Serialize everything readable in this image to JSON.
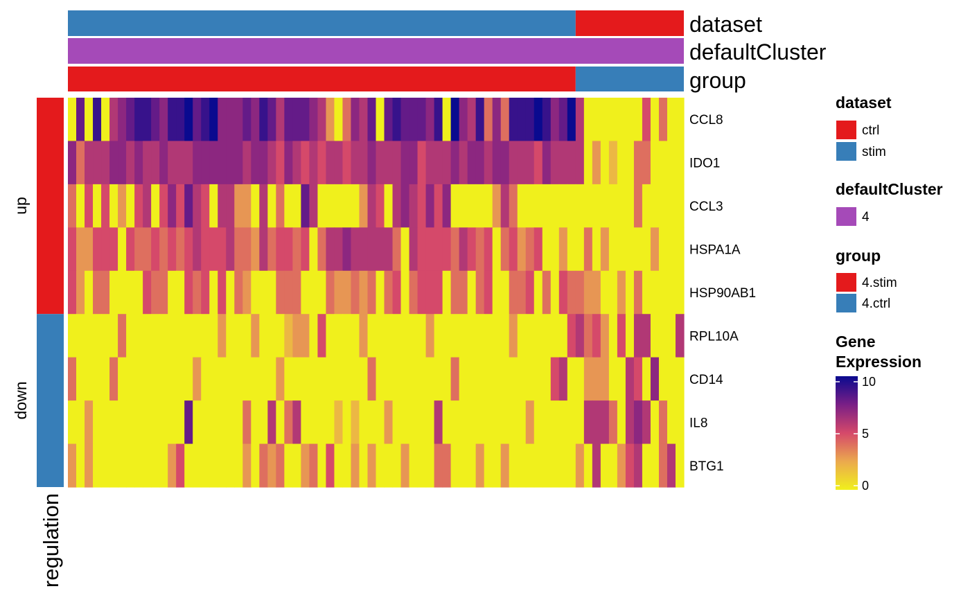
{
  "chart_data": {
    "type": "heatmap",
    "genes": [
      "CCL8",
      "IDO1",
      "CCL3",
      "HSPA1A",
      "HSP90AB1",
      "RPL10A",
      "CD14",
      "IL8",
      "BTG1"
    ],
    "regulation_groups": [
      {
        "label": "up",
        "genes": 5,
        "color": "#E41A1C"
      },
      {
        "label": "down",
        "genes": 4,
        "color": "#377EB8"
      }
    ],
    "regulation_title": "regulation",
    "annotations": [
      {
        "name": "dataset",
        "segments": [
          {
            "value": "stim",
            "cells": 61,
            "color": "#377EB8"
          },
          {
            "value": "ctrl",
            "cells": 13,
            "color": "#E41A1C"
          }
        ]
      },
      {
        "name": "defaultCluster",
        "segments": [
          {
            "value": "4",
            "cells": 74,
            "color": "#A54AB8"
          }
        ]
      },
      {
        "name": "group",
        "segments": [
          {
            "value": "4.stim",
            "cells": 61,
            "color": "#E41A1C"
          },
          {
            "value": "4.ctrl",
            "cells": 13,
            "color": "#377EB8"
          }
        ]
      }
    ],
    "n_cells": 74,
    "values": [
      [
        0,
        8,
        0,
        9,
        0,
        6,
        7,
        8,
        9,
        9,
        8,
        7,
        9,
        9,
        10,
        8,
        9,
        10,
        7,
        7,
        7,
        8,
        7,
        9,
        8,
        6,
        8,
        8,
        8,
        7,
        6,
        3,
        0,
        4,
        7,
        6,
        8,
        0,
        8,
        9,
        8,
        8,
        8,
        7,
        9,
        0,
        10,
        7,
        6,
        9,
        4,
        7,
        4,
        9,
        9,
        9,
        10,
        9,
        7,
        8,
        10,
        6,
        0,
        0,
        0,
        0,
        0,
        0,
        0,
        5,
        0,
        4,
        0,
        0
      ],
      [
        7,
        4,
        6,
        6,
        6,
        7,
        7,
        6,
        7,
        6,
        6,
        7,
        6,
        6,
        6,
        7,
        7,
        7,
        7,
        7,
        7,
        6,
        7,
        7,
        6,
        5,
        7,
        6,
        5,
        6,
        5,
        6,
        6,
        5,
        6,
        6,
        7,
        6,
        6,
        6,
        7,
        7,
        5,
        6,
        6,
        6,
        7,
        6,
        7,
        7,
        6,
        7,
        7,
        6,
        6,
        6,
        5,
        7,
        6,
        6,
        6,
        6,
        0,
        3,
        0,
        2,
        0,
        0,
        4,
        4,
        0,
        0,
        0,
        0
      ],
      [
        4,
        0,
        5,
        0,
        5,
        0,
        3,
        0,
        5,
        6,
        0,
        5,
        7,
        5,
        8,
        6,
        5,
        0,
        6,
        6,
        3,
        3,
        0,
        6,
        0,
        4,
        0,
        0,
        8,
        6,
        0,
        0,
        0,
        0,
        0,
        3,
        6,
        5,
        0,
        6,
        7,
        6,
        5,
        7,
        5,
        7,
        0,
        0,
        0,
        0,
        0,
        3,
        6,
        4,
        0,
        0,
        0,
        0,
        0,
        0,
        0,
        0,
        0,
        0,
        0,
        0,
        0,
        0,
        4,
        0,
        0,
        0,
        0,
        0
      ],
      [
        5,
        3,
        3,
        5,
        5,
        5,
        0,
        5,
        4,
        4,
        5,
        4,
        5,
        4,
        5,
        6,
        5,
        5,
        5,
        6,
        4,
        4,
        3,
        6,
        4,
        5,
        5,
        4,
        5,
        0,
        4,
        6,
        6,
        7,
        6,
        6,
        6,
        6,
        6,
        4,
        0,
        6,
        5,
        5,
        5,
        5,
        4,
        6,
        5,
        4,
        5,
        0,
        4,
        5,
        3,
        4,
        5,
        0,
        0,
        3,
        0,
        0,
        4,
        0,
        3,
        0,
        0,
        0,
        0,
        0,
        3,
        0,
        0,
        0
      ],
      [
        5,
        3,
        0,
        4,
        4,
        0,
        0,
        0,
        0,
        5,
        4,
        4,
        0,
        0,
        5,
        4,
        5,
        0,
        5,
        0,
        4,
        3,
        0,
        0,
        0,
        4,
        4,
        4,
        0,
        0,
        0,
        4,
        3,
        3,
        4,
        3,
        4,
        0,
        4,
        5,
        0,
        4,
        5,
        5,
        5,
        0,
        4,
        4,
        0,
        4,
        5,
        0,
        0,
        4,
        4,
        5,
        0,
        4,
        0,
        5,
        4,
        4,
        3,
        3,
        0,
        0,
        3,
        0,
        4,
        0,
        0,
        0,
        0,
        0
      ],
      [
        0,
        0,
        0,
        0,
        0,
        0,
        4,
        0,
        0,
        0,
        0,
        0,
        0,
        0,
        0,
        0,
        0,
        0,
        3,
        0,
        0,
        0,
        3,
        0,
        0,
        0,
        2,
        3,
        3,
        0,
        5,
        0,
        0,
        0,
        0,
        3,
        0,
        0,
        0,
        0,
        0,
        0,
        0,
        3,
        0,
        0,
        0,
        0,
        0,
        0,
        0,
        0,
        0,
        3,
        0,
        0,
        0,
        0,
        0,
        0,
        5,
        6,
        4,
        5,
        3,
        0,
        5,
        0,
        6,
        6,
        0,
        0,
        0,
        6
      ],
      [
        4,
        0,
        0,
        0,
        0,
        4,
        0,
        0,
        0,
        0,
        0,
        0,
        0,
        0,
        0,
        3,
        0,
        0,
        0,
        0,
        0,
        0,
        0,
        0,
        0,
        3,
        0,
        0,
        0,
        0,
        0,
        0,
        0,
        0,
        0,
        0,
        4,
        0,
        0,
        0,
        0,
        0,
        0,
        0,
        0,
        0,
        4,
        0,
        0,
        0,
        0,
        0,
        0,
        0,
        0,
        0,
        0,
        0,
        5,
        6,
        0,
        0,
        3,
        3,
        3,
        0,
        0,
        6,
        5,
        0,
        7,
        0,
        0,
        0
      ],
      [
        0,
        0,
        3,
        0,
        0,
        0,
        0,
        0,
        0,
        0,
        0,
        0,
        0,
        0,
        8,
        0,
        0,
        0,
        0,
        0,
        0,
        4,
        0,
        0,
        6,
        0,
        4,
        6,
        0,
        0,
        0,
        0,
        2,
        0,
        2,
        0,
        0,
        0,
        3,
        0,
        0,
        0,
        0,
        0,
        6,
        0,
        0,
        0,
        0,
        0,
        0,
        0,
        0,
        0,
        0,
        3,
        0,
        0,
        0,
        0,
        0,
        0,
        6,
        6,
        6,
        4,
        0,
        6,
        7,
        6,
        0,
        4,
        0,
        0
      ],
      [
        3,
        0,
        3,
        0,
        0,
        0,
        0,
        0,
        0,
        0,
        0,
        0,
        3,
        5,
        0,
        0,
        0,
        0,
        0,
        0,
        0,
        3,
        0,
        4,
        3,
        4,
        0,
        0,
        3,
        4,
        0,
        5,
        0,
        0,
        3,
        0,
        3,
        0,
        0,
        0,
        3,
        0,
        0,
        0,
        4,
        4,
        0,
        0,
        0,
        3,
        0,
        0,
        3,
        0,
        0,
        0,
        0,
        0,
        0,
        0,
        0,
        3,
        0,
        6,
        0,
        0,
        3,
        5,
        6,
        0,
        0,
        4,
        6,
        0
      ]
    ],
    "color_scale": {
      "min": 0,
      "max": 10,
      "ticks": [
        0,
        5,
        10
      ],
      "low": "#F0F01C",
      "mid": "#D5496A",
      "high": "#0A0A8F"
    }
  },
  "legend": {
    "dataset_title": "dataset",
    "dataset_items": [
      {
        "label": "ctrl",
        "color": "#E41A1C"
      },
      {
        "label": "stim",
        "color": "#377EB8"
      }
    ],
    "cluster_title": "defaultCluster",
    "cluster_items": [
      {
        "label": "4",
        "color": "#A54AB8"
      }
    ],
    "group_title": "group",
    "group_items": [
      {
        "label": "4.stim",
        "color": "#E41A1C"
      },
      {
        "label": "4.ctrl",
        "color": "#377EB8"
      }
    ],
    "expr_title_line1": "Gene",
    "expr_title_line2": "Expression",
    "expr_ticks": [
      "10",
      "5",
      "0"
    ]
  }
}
